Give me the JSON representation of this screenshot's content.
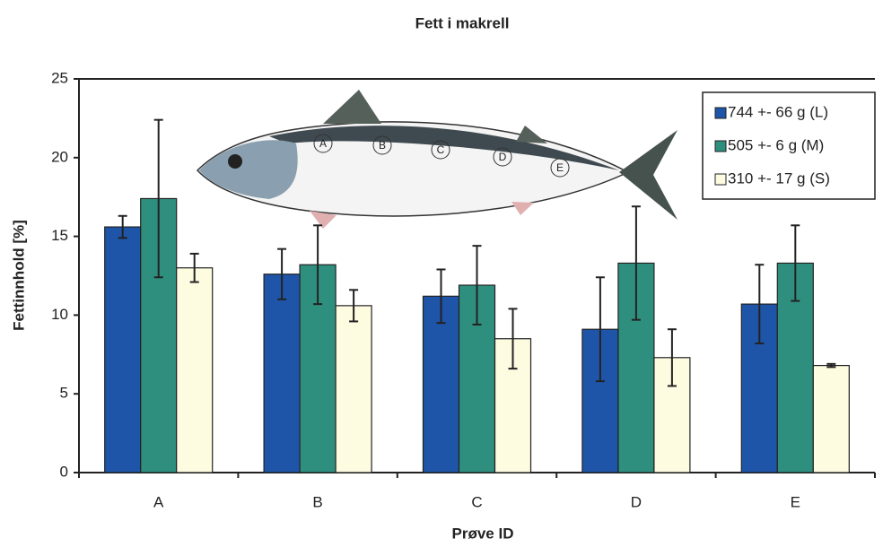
{
  "chart_data": {
    "type": "bar",
    "title": "Fett i makrell",
    "x_label": "Prøve ID",
    "y_label": "Fettinnhold [%]",
    "categories": [
      "A",
      "B",
      "C",
      "D",
      "E"
    ],
    "series": [
      {
        "name": "744 +- 66 g (L)",
        "color": "#1f55a8",
        "values": [
          15.6,
          12.6,
          11.2,
          9.1,
          10.7
        ],
        "errors": [
          0.7,
          1.6,
          1.7,
          3.3,
          2.5
        ]
      },
      {
        "name": "505 +- 6 g (M)",
        "color": "#2f8f7f",
        "values": [
          17.4,
          13.2,
          11.9,
          13.3,
          13.3
        ],
        "errors": [
          5.0,
          2.5,
          2.5,
          3.6,
          2.4
        ]
      },
      {
        "name": "310 +- 17 g (S)",
        "color": "#fdfbe0",
        "values": [
          13.0,
          10.6,
          8.5,
          7.3,
          6.8
        ],
        "errors": [
          0.9,
          1.0,
          1.9,
          1.8,
          0.1
        ]
      }
    ],
    "ylim": [
      0,
      25
    ],
    "yticks": [
      0,
      5,
      10,
      15,
      20,
      25
    ],
    "grid": false,
    "legend": "top-right"
  }
}
